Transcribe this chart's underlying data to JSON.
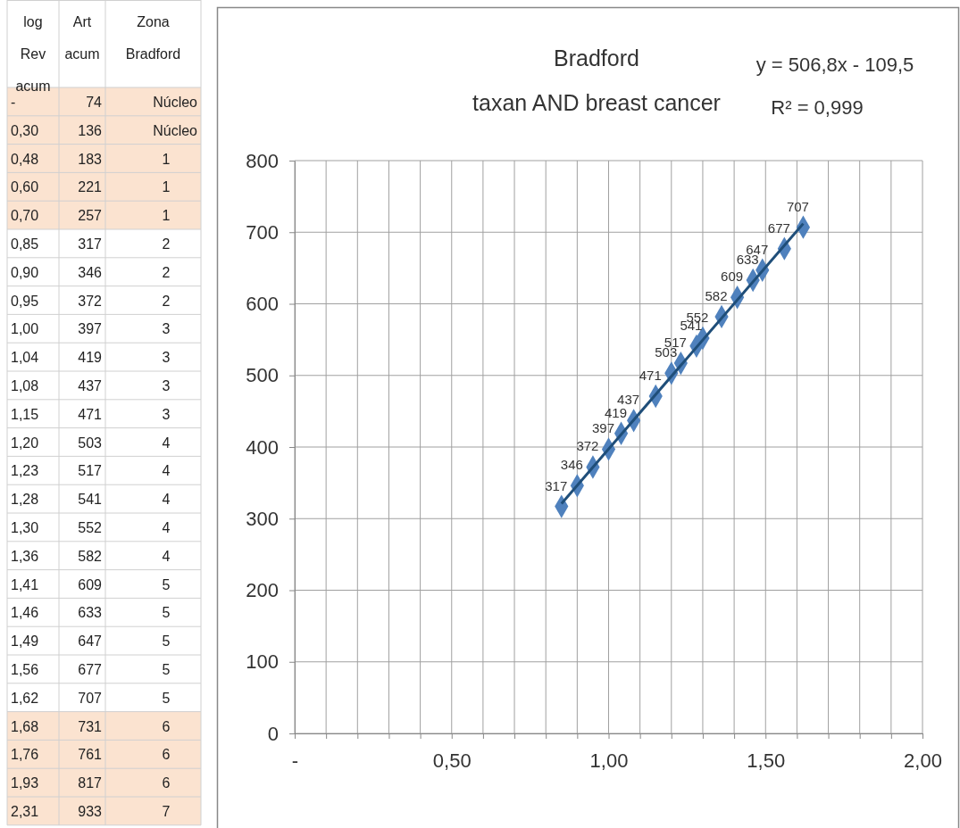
{
  "chart_data": [
    {
      "type": "heatmap",
      "ylabel": "log Rev acum",
      "categories": [
        "Art acum",
        "Zona Bradford"
      ],
      "y_categories": [
        "-",
        "0,30",
        "0,48",
        "0,60",
        "0,70",
        "0,85",
        "0,90",
        "0,95",
        "1,00",
        "1,04",
        "1,08",
        "1,15",
        "1,20",
        "1,23",
        "1,28",
        "1,30",
        "1,36",
        "1,41",
        "1,46",
        "1,49",
        "1,56",
        "1,62",
        "1,68",
        "1,76",
        "1,93",
        "2,31"
      ],
      "cells": [
        [
          null,
          null
        ],
        [
          null,
          null
        ],
        [
          null,
          null
        ],
        [
          null,
          null
        ],
        [
          null,
          null
        ],
        [
          null,
          null
        ],
        [
          null,
          null
        ],
        [
          null,
          null
        ],
        [
          null,
          null
        ],
        [
          null,
          null
        ],
        [
          null,
          null
        ],
        [
          null,
          null
        ],
        [
          null,
          null
        ],
        [
          null,
          null
        ],
        [
          null,
          null
        ],
        [
          null,
          null
        ],
        [
          null,
          null
        ],
        [
          null,
          null
        ],
        [
          null,
          null
        ],
        [
          null,
          null
        ],
        [
          null,
          null
        ],
        [
          null,
          null
        ],
        [
          null,
          null
        ],
        [
          null,
          null
        ],
        [
          null,
          null
        ],
        [
          null,
          null
        ]
      ],
      "cell_labels": [
        [
          "74",
          "Núcleo"
        ],
        [
          "136",
          "Núcleo"
        ],
        [
          "183",
          "1"
        ],
        [
          "221",
          "1"
        ],
        [
          "257",
          "1"
        ],
        [
          "317",
          "2"
        ],
        [
          "346",
          "2"
        ],
        [
          "372",
          "2"
        ],
        [
          "397",
          "3"
        ],
        [
          "419",
          "3"
        ],
        [
          "437",
          "3"
        ],
        [
          "471",
          "3"
        ],
        [
          "503",
          "4"
        ],
        [
          "517",
          "4"
        ],
        [
          "541",
          "4"
        ],
        [
          "552",
          "4"
        ],
        [
          "582",
          "4"
        ],
        [
          "609",
          "5"
        ],
        [
          "633",
          "5"
        ],
        [
          "647",
          "5"
        ],
        [
          "677",
          "5"
        ],
        [
          "707",
          "5"
        ],
        [
          "731",
          "6"
        ],
        [
          "761",
          "6"
        ],
        [
          "817",
          "6"
        ],
        [
          "933",
          "7"
        ]
      ],
      "bands": [
        {
          "axis": "y",
          "from": "-",
          "to": "0,30",
          "color": "#fbe3d0"
        },
        {
          "axis": "y",
          "from": "0,48",
          "to": "0,70",
          "color": "#fbe3d0"
        },
        {
          "axis": "y",
          "from": "1,68",
          "to": "2,31",
          "color": "#fbe3d0"
        }
      ]
    },
    {
      "type": "scatter",
      "title": "Bradford",
      "subtitle": "taxan AND breast cancer",
      "annotations": [
        "y = 506,8x - 109,5",
        "R² = 0,999"
      ],
      "series": [
        {
          "type": "scatter",
          "color": "#4f81bd",
          "marker": "diamond",
          "x": [
            0.85,
            0.9,
            0.95,
            1.0,
            1.04,
            1.08,
            1.15,
            1.2,
            1.23,
            1.28,
            1.3,
            1.36,
            1.41,
            1.46,
            1.49,
            1.56,
            1.62
          ],
          "values": [
            317,
            346,
            372,
            397,
            419,
            437,
            471,
            503,
            517,
            541,
            552,
            582,
            609,
            633,
            647,
            677,
            707
          ],
          "value_labels": [
            "317",
            "346",
            "372",
            "397",
            "419",
            "437",
            "471",
            "503",
            "517",
            "541",
            "552",
            "582",
            "609",
            "633",
            "647",
            "677",
            "707"
          ]
        },
        {
          "type": "line",
          "color": "#1f4e79",
          "marker": "none",
          "x": [
            0.85,
            1.62
          ],
          "values": [
            321,
            712
          ]
        }
      ],
      "xlim": [
        0,
        2
      ],
      "xticks": [
        {
          "value": 0,
          "label": "-"
        },
        {
          "value": 0.1,
          "label": null
        },
        {
          "value": 0.2,
          "label": null
        },
        {
          "value": 0.3,
          "label": null
        },
        {
          "value": 0.4,
          "label": null
        },
        {
          "value": 0.5,
          "label": "0,50"
        },
        {
          "value": 0.6,
          "label": null
        },
        {
          "value": 0.7,
          "label": null
        },
        {
          "value": 0.8,
          "label": null
        },
        {
          "value": 0.9,
          "label": null
        },
        {
          "value": 1.0,
          "label": "1,00"
        },
        {
          "value": 1.1,
          "label": null
        },
        {
          "value": 1.2,
          "label": null
        },
        {
          "value": 1.3,
          "label": null
        },
        {
          "value": 1.4,
          "label": null
        },
        {
          "value": 1.5,
          "label": "1,50"
        },
        {
          "value": 1.6,
          "label": null
        },
        {
          "value": 1.7,
          "label": null
        },
        {
          "value": 1.8,
          "label": null
        },
        {
          "value": 1.9,
          "label": null
        },
        {
          "value": 2.0,
          "label": "2,00"
        }
      ],
      "ylim": [
        0,
        800
      ],
      "yticks": [
        0,
        100,
        200,
        300,
        400,
        500,
        600,
        700,
        800
      ],
      "grid": true
    }
  ]
}
